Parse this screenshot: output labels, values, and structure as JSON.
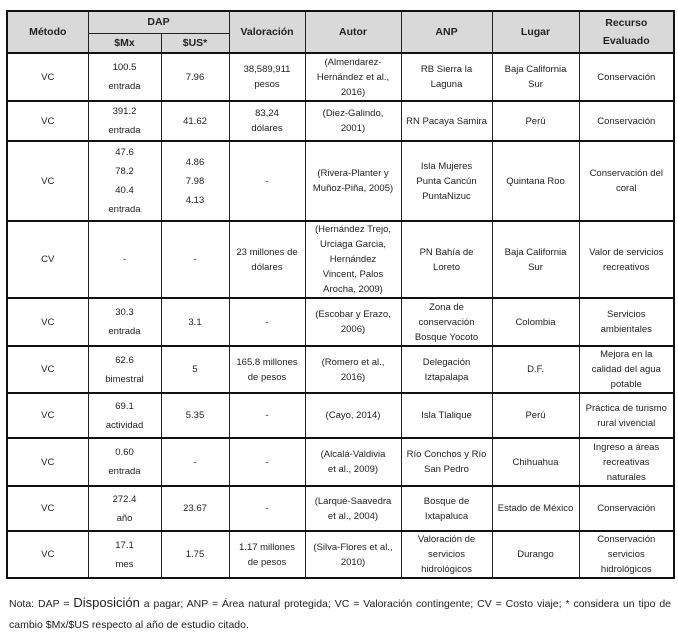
{
  "headers": {
    "metodo": "Método",
    "dap": "DAP",
    "mx": "$Mx",
    "us": "$US*",
    "valoracion": "Valoración",
    "autor": "Autor",
    "anp": "ANP",
    "lugar": "Lugar",
    "recurso": "Recurso Evaluado"
  },
  "rows": [
    {
      "metodo": "VC",
      "mx": "100.5\nentrada",
      "us": "7.96",
      "valoracion": "38,589,911\npesos",
      "autor": "(Almendarez-\nHernández et al.,\n2016)",
      "anp": "RB Sierra la\nLaguna",
      "lugar": "Baja California\nSur",
      "recurso": "Conservación"
    },
    {
      "metodo": "VC",
      "mx": "391.2\nentrada",
      "us": "41.62",
      "valoracion": "83,24\ndólares",
      "autor": "(Diez-Galindo,\n2001)",
      "anp": "RN Pacaya Samira",
      "lugar": "Perú",
      "recurso": "Conservación"
    },
    {
      "metodo": "VC",
      "mx": "47.6\n78.2\n40.4\nentrada",
      "us": "4.86\n7.98\n4.13\n ",
      "valoracion": "-",
      "autor": "(Rivera-Planter y\nMuñoz-Piña, 2005)",
      "anp": "Isla Mujeres\nPunta Cancún\nPuntaNizuc",
      "lugar": "Quintana Roo",
      "recurso": "Conservación del\ncoral"
    },
    {
      "metodo": "CV",
      "mx": "-",
      "us": "-",
      "valoracion": "23 millones de\ndólares",
      "autor": "(Hernández Trejo,\nUrciaga Garcia,\nHernández\nVincent,  Palos\nArocha, 2009)",
      "anp": "PN Bahía de\nLoreto",
      "lugar": "Baja California\nSur",
      "recurso": "Valor de servicios\nrecreativos"
    },
    {
      "metodo": "VC",
      "mx": "30.3\nentrada",
      "us": "3.1",
      "valoracion": "-",
      "autor": "(Escobar y Erazo,\n2006)",
      "anp": "Zona de\nconservación\nBosque Yocoto",
      "lugar": "Colombia",
      "recurso": "Servicios\nambientales"
    },
    {
      "metodo": "VC",
      "mx": "62.6\nbimestral",
      "us": "5",
      "valoracion": "165.8 millones\nde pesos",
      "autor": "(Romero et al.,\n2016)",
      "anp": "Delegación\nIztapalapa",
      "lugar": "D.F.",
      "recurso": "Mejora en la\ncalidad del agua\npotable"
    },
    {
      "metodo": "VC",
      "mx": "69.1\nactividad",
      "us": "5.35",
      "valoracion": "-",
      "autor": "(Cayo, 2014)",
      "anp": "Isla Tlalique",
      "lugar": "Perú",
      "recurso": "Práctica de turismo\nrural vivencial"
    },
    {
      "metodo": "VC",
      "mx": "0.60\nentrada",
      "us": "-",
      "valoracion": "-",
      "autor": "(Alcalá-Valdivia\net al., 2009)",
      "anp": "Río Conchos y Río\nSan Pedro",
      "lugar": "Chihuahua",
      "recurso": "Ingreso a áreas\nrecreativas\nnaturales"
    },
    {
      "metodo": "VC",
      "mx": "272.4\naño",
      "us": "23.67",
      "valoracion": "-",
      "autor": "(Larqué-Saavedra\net al., 2004)",
      "anp": "Bosque de\nIxtapaluca",
      "lugar": "Estado de México",
      "recurso": "Conservación"
    },
    {
      "metodo": "VC",
      "mx": "17.1\nmes",
      "us": "1.75",
      "valoracion": "1.17 millones\nde pesos",
      "autor": "(Silva-Flores et al.,\n2010)",
      "anp": "Valoración de\nservicios\nhidrológicos",
      "lugar": "Durango",
      "recurso": "Conservación\nservicios\nhidrológicos"
    }
  ],
  "note": {
    "prefix": "Nota: DAP = ",
    "big": "Disposición",
    "rest": " a pagar; ANP = Área natural protegida; VC = Valoración contingente; CV = Costo viaje; * considera un tipo de cambio $Mx/$US respecto al año de estudio citado."
  }
}
